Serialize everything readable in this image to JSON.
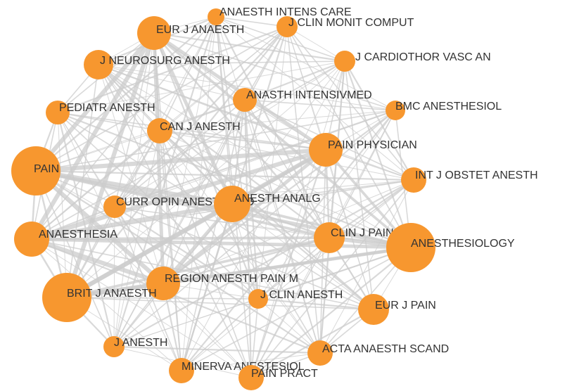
{
  "nodes": [
    {
      "label": "ANAESTH INTENS CARE"
    },
    {
      "label": "EUR J ANAESTH"
    },
    {
      "label": "J CLIN MONIT COMPUT"
    },
    {
      "label": "J CARDIOTHOR VASC AN"
    },
    {
      "label": "J NEUROSURG ANESTH"
    },
    {
      "label": "ANASTH INTENSIVMED"
    },
    {
      "label": "BMC ANESTHESIOL"
    },
    {
      "label": "PEDIATR ANESTH"
    },
    {
      "label": "CAN J ANESTH"
    },
    {
      "label": "PAIN PHYSICIAN"
    },
    {
      "label": "PAIN"
    },
    {
      "label": "INT J OBSTET ANESTH"
    },
    {
      "label": "CURR OPIN ANESTHESIO"
    },
    {
      "label": "ANESTH ANALG"
    },
    {
      "label": "ANAESTHESIA"
    },
    {
      "label": "CLIN J PAIN"
    },
    {
      "label": "ANESTHESIOLOGY"
    },
    {
      "label": "REGION ANESTH PAIN M"
    },
    {
      "label": "BRIT J ANAESTH"
    },
    {
      "label": "J CLIN ANESTH"
    },
    {
      "label": "EUR J PAIN"
    },
    {
      "label": "J ANESTH"
    },
    {
      "label": "ACTA ANAESTH SCAND"
    },
    {
      "label": "MINERVA ANESTESIOL"
    },
    {
      "label": "PAIN PRACT"
    }
  ]
}
